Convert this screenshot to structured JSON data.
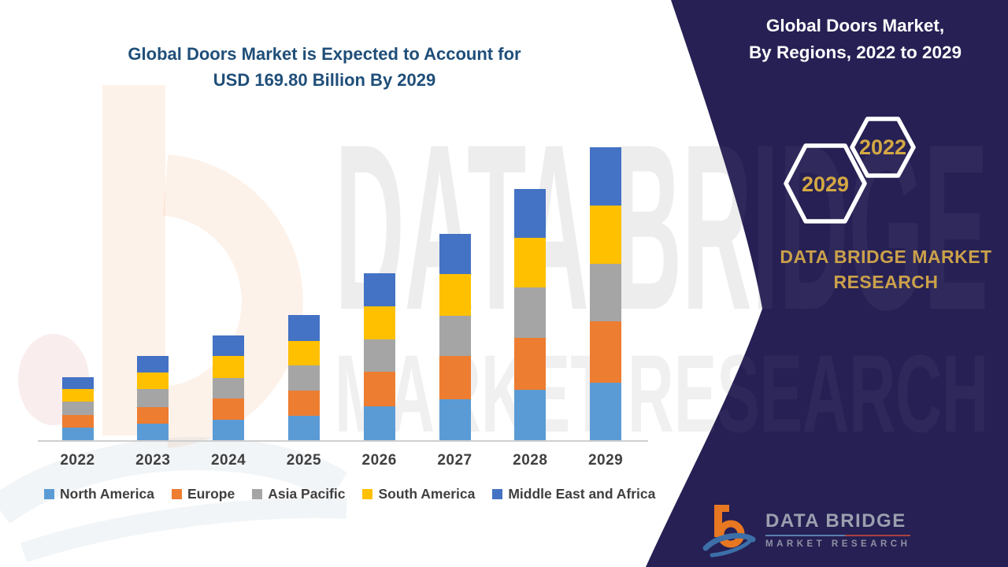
{
  "chart": {
    "title_line1": "Global Doors Market is Expected to Account for",
    "title_line2": "USD 169.80 Billion By 2029",
    "title_color": "#1F4E79"
  },
  "chart_data": {
    "type": "bar",
    "stacked": true,
    "title": "Global Doors Market is Expected to Account for USD 169.80 Billion By 2029",
    "unit": "USD Billion",
    "categories": [
      "2022",
      "2023",
      "2024",
      "2025",
      "2026",
      "2027",
      "2028",
      "2029"
    ],
    "series": [
      {
        "name": "North America",
        "color": "#5B9BD5",
        "values": [
          7.7,
          10.0,
          12.3,
          14.6,
          20.0,
          24.1,
          29.6,
          33.7
        ]
      },
      {
        "name": "Europe",
        "color": "#ED7D31",
        "values": [
          7.3,
          9.6,
          12.3,
          14.6,
          20.0,
          25.0,
          30.0,
          35.5
        ]
      },
      {
        "name": "Asia Pacific",
        "color": "#A5A5A5",
        "values": [
          7.7,
          10.5,
          11.8,
          14.6,
          18.7,
          23.2,
          29.1,
          33.2
        ]
      },
      {
        "name": "South America",
        "color": "#FFC000",
        "values": [
          7.3,
          9.6,
          12.7,
          14.1,
          19.1,
          24.1,
          28.7,
          33.7
        ]
      },
      {
        "name": "Middle East and Africa",
        "color": "#4472C4",
        "values": [
          6.8,
          9.6,
          11.8,
          15.0,
          19.1,
          23.2,
          28.2,
          33.7
        ]
      }
    ],
    "estimated_totals": [
      36.8,
      49.3,
      60.9,
      72.9,
      96.9,
      119.6,
      145.6,
      169.8
    ],
    "annotated_value_2029": "USD 169.80 Billion",
    "xlabel": "",
    "ylabel": "",
    "gridlines": false,
    "legend_position": "bottom"
  },
  "panel": {
    "bg_color": "#262054",
    "title_line1": "Global Doors Market,",
    "title_line2": "By Regions, 2022 to 2029",
    "badge_front": "2029",
    "badge_back": "2022",
    "badge_text_color": "#D4A843",
    "brand_text": "DATA BRIDGE MARKET RESEARCH",
    "brand_color": "#CBA14A"
  },
  "logo": {
    "name": "DATA BRIDGE",
    "subtitle": "MARKET RESEARCH"
  },
  "watermark": {
    "line1": "DATA BRIDGE",
    "line2": "MARKET RESEARCH"
  }
}
